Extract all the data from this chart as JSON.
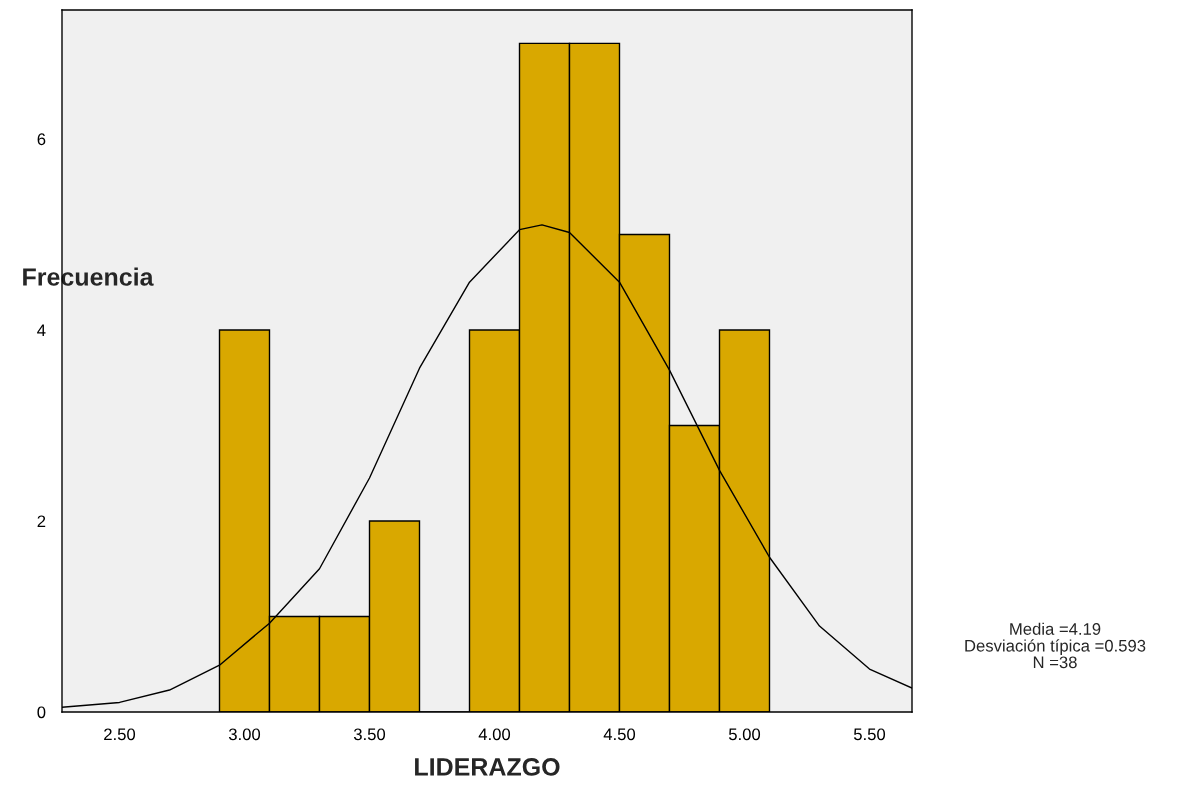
{
  "chart_data": {
    "type": "histogram",
    "xlabel": "LIDERAZGO",
    "ylabel": "Frecuencia",
    "bins": [
      2.9,
      3.1,
      3.3,
      3.5,
      3.7,
      3.9,
      4.1,
      4.3,
      4.5,
      4.7,
      4.9,
      5.1
    ],
    "values": [
      4,
      1,
      1,
      2,
      0,
      4,
      7,
      7,
      5,
      3,
      4
    ],
    "color": "#d9a800",
    "series": [
      {
        "type": "line",
        "color": "#000000",
        "x": [
          2.27,
          2.5,
          2.7,
          2.9,
          3.1,
          3.3,
          3.5,
          3.7,
          3.9,
          4.1,
          4.19,
          4.3,
          4.5,
          4.7,
          4.9,
          5.1,
          5.3,
          5.5,
          5.67
        ],
        "values": [
          0.05,
          0.1,
          0.23,
          0.49,
          0.93,
          1.5,
          2.45,
          3.6,
          4.5,
          5.05,
          5.1,
          5.02,
          4.5,
          3.58,
          2.53,
          1.62,
          0.9,
          0.45,
          0.25
        ]
      }
    ],
    "xlim": [
      2.27,
      5.67
    ],
    "ylim": [
      0,
      7.35
    ],
    "xticks": [
      {
        "value": 2.5,
        "label": "2.50"
      },
      {
        "value": 3.0,
        "label": "3.00"
      },
      {
        "value": 3.5,
        "label": "3.50"
      },
      {
        "value": 4.0,
        "label": "4.00"
      },
      {
        "value": 4.5,
        "label": "4.50"
      },
      {
        "value": 5.0,
        "label": "5.00"
      },
      {
        "value": 5.5,
        "label": "5.50"
      }
    ],
    "yticks": [
      0,
      2,
      4,
      6
    ],
    "grid": false,
    "annotations": [
      "Media =4.19",
      "Desviación típica =0.593",
      "N =38"
    ]
  }
}
